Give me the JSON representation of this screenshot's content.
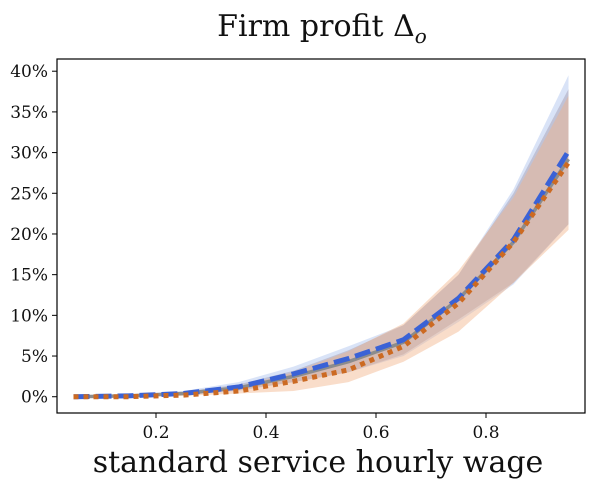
{
  "chart_data": {
    "type": "line",
    "title": "Firm profit Δ",
    "title_subscript": "o",
    "xlabel": "standard service hourly wage",
    "ylabel": "",
    "xlim": [
      0.02,
      0.98
    ],
    "ylim": [
      -0.02,
      0.415
    ],
    "x_ticks": [
      0.2,
      0.4,
      0.6,
      0.8
    ],
    "x_tick_labels": [
      "0.2",
      "0.4",
      "0.6",
      "0.8"
    ],
    "y_ticks": [
      0,
      0.05,
      0.1,
      0.15,
      0.2,
      0.25,
      0.3,
      0.35,
      0.4
    ],
    "y_tick_labels": [
      "0%",
      "5%",
      "10%",
      "15%",
      "20%",
      "25%",
      "30%",
      "35%",
      "40%"
    ],
    "grid": false,
    "legend": "none",
    "x": [
      0.05,
      0.15,
      0.25,
      0.35,
      0.45,
      0.55,
      0.65,
      0.75,
      0.85,
      0.95
    ],
    "series": [
      {
        "style": "solid",
        "color": "#8c8c8c",
        "values": [
          0.0,
          0.001,
          0.004,
          0.011,
          0.025,
          0.043,
          0.067,
          0.12,
          0.19,
          0.292
        ],
        "band_low": [
          0.0,
          0.0,
          0.002,
          0.008,
          0.018,
          0.03,
          0.052,
          0.095,
          0.14,
          0.212
        ],
        "band_high": [
          0.0,
          0.002,
          0.006,
          0.015,
          0.032,
          0.057,
          0.088,
          0.15,
          0.25,
          0.378
        ],
        "band_color": "#9a7d7d"
      },
      {
        "style": "dashed",
        "color": "#3a62d6",
        "values": [
          0.0,
          0.001,
          0.004,
          0.012,
          0.028,
          0.047,
          0.07,
          0.121,
          0.193,
          0.302
        ],
        "band_low": [
          0.0,
          0.0,
          0.002,
          0.007,
          0.018,
          0.03,
          0.05,
          0.092,
          0.138,
          0.212
        ],
        "band_high": [
          0.0,
          0.003,
          0.007,
          0.018,
          0.037,
          0.062,
          0.088,
          0.15,
          0.255,
          0.395
        ],
        "band_color": "#aac0ee"
      },
      {
        "style": "dotted",
        "color": "#cc6a22",
        "values": [
          0.0,
          0.0,
          0.002,
          0.007,
          0.019,
          0.033,
          0.062,
          0.115,
          0.19,
          0.288
        ],
        "band_low": [
          0.0,
          0.0,
          0.001,
          0.004,
          0.007,
          0.018,
          0.043,
          0.08,
          0.14,
          0.205
        ],
        "band_high": [
          0.0,
          0.001,
          0.004,
          0.012,
          0.03,
          0.056,
          0.09,
          0.155,
          0.245,
          0.37
        ],
        "band_color": "#f1b48a"
      }
    ]
  }
}
